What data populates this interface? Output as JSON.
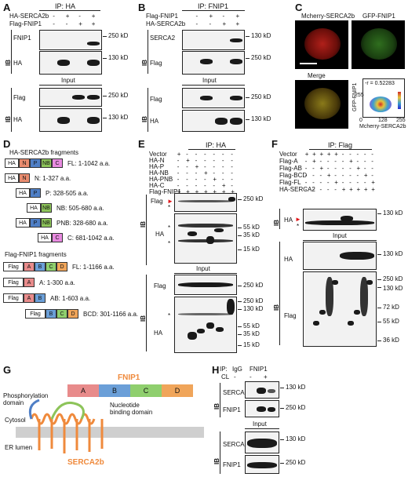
{
  "panels": {
    "A": {
      "letter": "A",
      "title": "IP: HA",
      "rows": [
        {
          "label": "HA-SERCA2b",
          "signs": [
            "-",
            "+",
            "-",
            "+"
          ]
        },
        {
          "label": "Flag-FNIP1",
          "signs": [
            "-",
            "-",
            "+",
            "+"
          ]
        }
      ],
      "ib": "IB",
      "input": "Input",
      "blot_labels": [
        "FNIP1",
        "HA",
        "Flag",
        "HA"
      ],
      "mw": [
        "250 kD",
        "130 kD",
        "250 kD",
        "130 kD"
      ]
    },
    "B": {
      "letter": "B",
      "title": "IP: FNIP1",
      "rows": [
        {
          "label": "Flag-FNIP1",
          "signs": [
            "-",
            "+",
            "-",
            "+"
          ]
        },
        {
          "label": "HA-SERCA2b",
          "signs": [
            "-",
            "-",
            "+",
            "+"
          ]
        }
      ],
      "ib": "IB",
      "input": "Input",
      "blot_labels": [
        "SERCA2",
        "Flag",
        "Flag",
        "HA"
      ],
      "mw": [
        "130 kD",
        "250 kD",
        "250 kD",
        "130 kD"
      ]
    },
    "C": {
      "letter": "C",
      "labels": [
        "Mcherry-SERCA2b",
        "GFP-FNIP1",
        "Merge"
      ],
      "r": "-r = 0.52283",
      "ylabel": "GFP-FNIP1",
      "xlabel": "Mcherry-SERCA2b",
      "ticks_x": [
        "0",
        "128",
        "255"
      ],
      "ticks_y": [
        "128",
        "255"
      ]
    },
    "D": {
      "letter": "D",
      "ha_title": "HA-SERCA2b fragments",
      "ha_frags": [
        {
          "segs": [
            "HA",
            "N",
            "P",
            "NB",
            "C"
          ],
          "desc": "FL: 1-1042 a.a."
        },
        {
          "segs": [
            "HA",
            "N"
          ],
          "desc": "N: 1-327 a.a."
        },
        {
          "segs": [
            "HA",
            "P"
          ],
          "desc": "P: 328-505 a.a."
        },
        {
          "segs": [
            "HA",
            "NB"
          ],
          "desc": "NB: 505-680 a.a."
        },
        {
          "segs": [
            "HA",
            "P",
            "NB"
          ],
          "desc": "PNB: 328-680 a.a."
        },
        {
          "segs": [
            "HA",
            "C"
          ],
          "desc": "C: 681-1042 a.a."
        }
      ],
      "flag_title": "Flag-FNIP1 fragments",
      "flag_frags": [
        {
          "segs": [
            "Flag",
            "A",
            "B",
            "C",
            "D"
          ],
          "desc": "FL: 1-1166 a.a."
        },
        {
          "segs": [
            "Flag",
            "A"
          ],
          "desc": "A: 1-300 a.a."
        },
        {
          "segs": [
            "Flag",
            "A",
            "B"
          ],
          "desc": "AB: 1-603 a.a."
        },
        {
          "segs": [
            "Flag",
            "B",
            "C",
            "D"
          ],
          "desc": "BCD: 301-1166 a.a."
        }
      ]
    },
    "E": {
      "letter": "E",
      "title": "IP: HA",
      "rows": [
        {
          "label": "Vector",
          "signs": [
            "+",
            "-",
            "-",
            "-",
            "-",
            "-",
            "-"
          ]
        },
        {
          "label": "HA-N",
          "signs": [
            "-",
            "+",
            "-",
            "-",
            "-",
            "-",
            "-"
          ]
        },
        {
          "label": "HA-P",
          "signs": [
            "-",
            "-",
            "+",
            "-",
            "-",
            "-",
            "-"
          ]
        },
        {
          "label": "HA-NB",
          "signs": [
            "-",
            "-",
            "-",
            "+",
            "-",
            "-",
            "-"
          ]
        },
        {
          "label": "HA-PNB",
          "signs": [
            "-",
            "-",
            "-",
            "-",
            "+",
            "-",
            "-"
          ]
        },
        {
          "label": "HA-C",
          "signs": [
            "-",
            "-",
            "-",
            "-",
            "-",
            "+",
            "-"
          ]
        },
        {
          "label": "Flag-FNIP1",
          "signs": [
            "+",
            "+",
            "+",
            "+",
            "+",
            "+",
            "+"
          ]
        }
      ],
      "ib": "IB",
      "input": "Input",
      "blot_labels": [
        "Flag",
        "HA",
        "Flag",
        "HA"
      ],
      "mw": [
        "250 kD",
        "55 kD",
        "35 kD",
        "15 kD",
        "250 kD",
        "250 kD",
        "130 kD",
        "55 kD",
        "35 kD",
        "15 kD"
      ],
      "asterisk": "*"
    },
    "F": {
      "letter": "F",
      "title": "IP: Flag",
      "rows": [
        {
          "label": "Vector",
          "signs": [
            "+",
            "+",
            "+",
            "+",
            "+",
            "-",
            "-",
            "-",
            "-",
            "-"
          ]
        },
        {
          "label": "Flag-A",
          "signs": [
            "-",
            "+",
            "-",
            "-",
            "-",
            "-",
            "+",
            "-",
            "-",
            "-"
          ]
        },
        {
          "label": "Flag-AB",
          "signs": [
            "-",
            "-",
            "+",
            "-",
            "-",
            "-",
            "-",
            "+",
            "-",
            "-"
          ]
        },
        {
          "label": "Flag-BCD",
          "signs": [
            "-",
            "-",
            "-",
            "+",
            "-",
            "-",
            "-",
            "-",
            "+",
            "-"
          ]
        },
        {
          "label": "Flag-FL",
          "signs": [
            "-",
            "-",
            "-",
            "-",
            "+",
            "-",
            "-",
            "-",
            "-",
            "+"
          ]
        },
        {
          "label": "HA-SERCA2",
          "signs": [
            "-",
            "-",
            "-",
            "-",
            "-",
            "+",
            "+",
            "+",
            "+",
            "+"
          ]
        }
      ],
      "ib": "IB",
      "input": "Input",
      "blot_labels": [
        "HA",
        "HA",
        "Flag"
      ],
      "mw": [
        "130 kD",
        "130 kD",
        "250 kD",
        "130 kD",
        "72 kD",
        "55 kD",
        "36 kD"
      ],
      "asterisk": "*"
    },
    "G": {
      "letter": "G",
      "fnip1": "FNIP1",
      "domains": [
        "A",
        "B",
        "C",
        "D"
      ],
      "phospho": "Phosphorylation\ndomain",
      "nucleotide": "Nucleotide\nbinding domain",
      "cytosol": "Cytosol",
      "lumen": "ER lumen",
      "serca": "SERCA2b"
    },
    "H": {
      "letter": "H",
      "ip": "IP:",
      "igg": "IgG",
      "fnip1": "FNIP1",
      "cl": "CL",
      "signs": [
        "-",
        "-",
        "+"
      ],
      "ib": "IB",
      "input": "Input",
      "blot_labels": [
        "SERCA2",
        "FNIP1",
        "SERCA2",
        "FNIP1"
      ],
      "mw": [
        "130 kD",
        "250 kD",
        "130 kD",
        "250 kD"
      ]
    }
  },
  "colors": {
    "N": "#e88b6e",
    "P": "#4f7fc6",
    "NB": "#8dc45a",
    "C_serca": "#e88be0",
    "A": "#e88b8b",
    "B": "#6b9fd8",
    "C": "#8fcf6e",
    "D": "#f0a55a",
    "serca": "#ef8a3c",
    "fnip_title": "#ef8a3c"
  }
}
